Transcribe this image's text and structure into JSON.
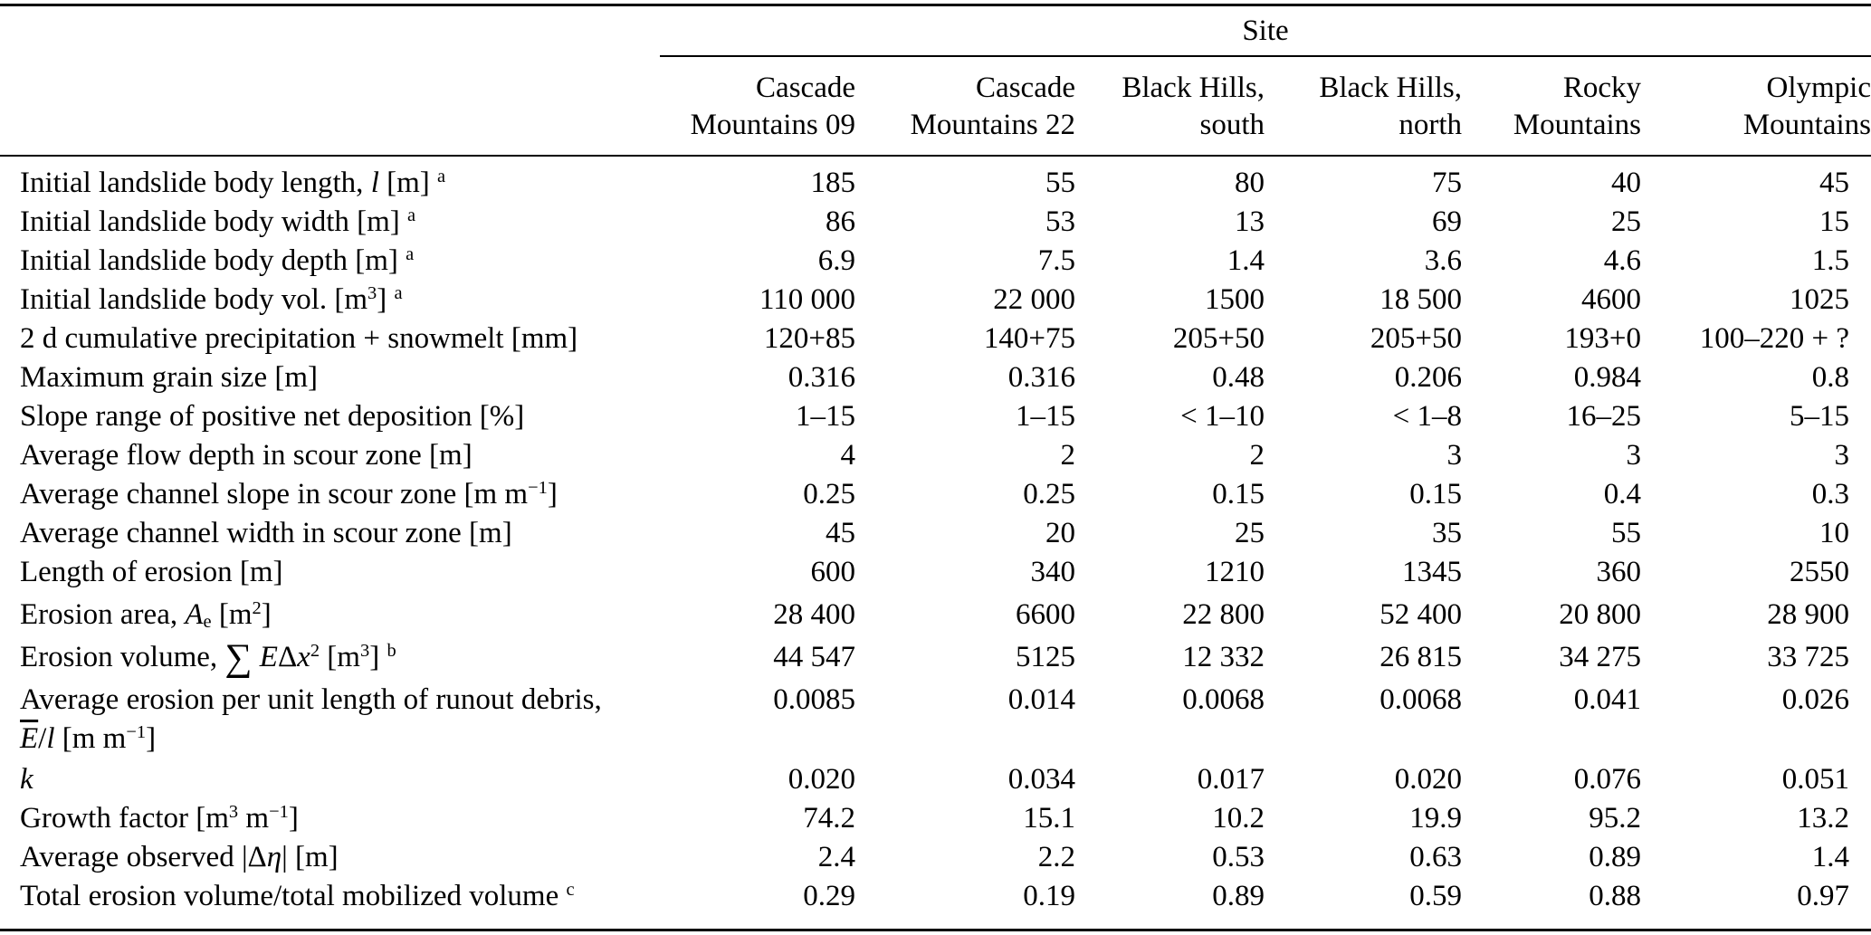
{
  "table": {
    "group_header": "Site",
    "columns": [
      [
        "Cascade",
        "Mountains 09"
      ],
      [
        "Cascade",
        "Mountains 22"
      ],
      [
        "Black Hills,",
        "south"
      ],
      [
        "Black Hills,",
        "north"
      ],
      [
        "Rocky",
        "Mountains"
      ],
      [
        "Olympic",
        "Mountains"
      ]
    ],
    "rows": [
      {
        "label": [
          {
            "s": "Initial landslide body length, "
          },
          {
            "s": "l",
            "i": 1
          },
          {
            "s": " [m] "
          },
          {
            "s": "a",
            "sup": 1
          }
        ],
        "values": [
          "185",
          "55",
          "80",
          "75",
          "40",
          "45"
        ]
      },
      {
        "label": [
          {
            "s": "Initial landslide body width [m] "
          },
          {
            "s": "a",
            "sup": 1
          }
        ],
        "values": [
          "86",
          "53",
          "13",
          "69",
          "25",
          "15"
        ]
      },
      {
        "label": [
          {
            "s": "Initial landslide body depth [m] "
          },
          {
            "s": "a",
            "sup": 1
          }
        ],
        "values": [
          "6.9",
          "7.5",
          "1.4",
          "3.6",
          "4.6",
          "1.5"
        ]
      },
      {
        "label": [
          {
            "s": "Initial landslide body vol. [m"
          },
          {
            "s": "3",
            "sup": 1
          },
          {
            "s": "] "
          },
          {
            "s": "a",
            "sup": 1
          }
        ],
        "values": [
          "110 000",
          "22 000",
          "1500",
          "18 500",
          "4600",
          "1025"
        ]
      },
      {
        "label": [
          {
            "s": "2 d cumulative precipitation + snowmelt [mm]"
          }
        ],
        "values": [
          "120+85",
          "140+75",
          "205+50",
          "205+50",
          "193+0",
          "100–220 + ?"
        ]
      },
      {
        "label": [
          {
            "s": "Maximum grain size [m]"
          }
        ],
        "values": [
          "0.316",
          "0.316",
          "0.48",
          "0.206",
          "0.984",
          "0.8"
        ]
      },
      {
        "label": [
          {
            "s": "Slope range of positive net deposition [%]"
          }
        ],
        "values": [
          "1–15",
          "1–15",
          "< 1–10",
          "< 1–8",
          "16–25",
          "5–15"
        ]
      },
      {
        "label": [
          {
            "s": "Average flow depth in scour zone [m]"
          }
        ],
        "values": [
          "4",
          "2",
          "2",
          "3",
          "3",
          "3"
        ]
      },
      {
        "label": [
          {
            "s": "Average channel slope in scour zone [m m"
          },
          {
            "s": "−1",
            "sup": 1
          },
          {
            "s": "]"
          }
        ],
        "values": [
          "0.25",
          "0.25",
          "0.15",
          "0.15",
          "0.4",
          "0.3"
        ]
      },
      {
        "label": [
          {
            "s": "Average channel width in scour zone [m]"
          }
        ],
        "values": [
          "45",
          "20",
          "25",
          "35",
          "55",
          "10"
        ]
      },
      {
        "label": [
          {
            "s": "Length of erosion [m]"
          }
        ],
        "values": [
          "600",
          "340",
          "1210",
          "1345",
          "360",
          "2550"
        ]
      },
      {
        "label": [
          {
            "s": "Erosion area, "
          },
          {
            "s": "A",
            "i": 1
          },
          {
            "s": "e",
            "sub": 1
          },
          {
            "s": " [m"
          },
          {
            "s": "2",
            "sup": 1
          },
          {
            "s": "]"
          }
        ],
        "values": [
          "28 400",
          "6600",
          "22 800",
          "52 400",
          "20 800",
          "28 900"
        ]
      },
      {
        "label": [
          {
            "s": "Erosion volume, "
          },
          {
            "s": "∑",
            "big": 1
          },
          {
            "s": " "
          },
          {
            "s": "E",
            "i": 1
          },
          {
            "s": "Δ"
          },
          {
            "s": "x",
            "i": 1
          },
          {
            "s": "2",
            "sup": 1
          },
          {
            "s": " [m"
          },
          {
            "s": "3",
            "sup": 1
          },
          {
            "s": "] "
          },
          {
            "s": "b",
            "sup": 1
          }
        ],
        "values": [
          "44 547",
          "5125",
          "12 332",
          "26 815",
          "34 275",
          "33 725"
        ]
      },
      {
        "label": [
          {
            "s": "Average erosion per unit length of runout debris,"
          },
          {
            "br": 1
          },
          {
            "s": "E",
            "i": 1,
            "ov": 1
          },
          {
            "s": "/"
          },
          {
            "s": "l",
            "i": 1
          },
          {
            "s": " [m m"
          },
          {
            "s": "−1",
            "sup": 1
          },
          {
            "s": "]"
          }
        ],
        "values": [
          "0.0085",
          "0.014",
          "0.0068",
          "0.0068",
          "0.041",
          "0.026"
        ]
      },
      {
        "label": [
          {
            "s": "k",
            "i": 1
          }
        ],
        "values": [
          "0.020",
          "0.034",
          "0.017",
          "0.020",
          "0.076",
          "0.051"
        ]
      },
      {
        "label": [
          {
            "s": "Growth factor [m"
          },
          {
            "s": "3",
            "sup": 1
          },
          {
            "s": " m"
          },
          {
            "s": "−1",
            "sup": 1
          },
          {
            "s": "]"
          }
        ],
        "values": [
          "74.2",
          "15.1",
          "10.2",
          "19.9",
          "95.2",
          "13.2"
        ]
      },
      {
        "label": [
          {
            "s": "Average observed |Δ"
          },
          {
            "s": "η",
            "i": 1
          },
          {
            "s": "| [m]"
          }
        ],
        "values": [
          "2.4",
          "2.2",
          "0.53",
          "0.63",
          "0.89",
          "1.4"
        ]
      },
      {
        "label": [
          {
            "s": "Total erosion volume/total mobilized volume "
          },
          {
            "s": "c",
            "sup": 1
          }
        ],
        "values": [
          "0.29",
          "0.19",
          "0.89",
          "0.59",
          "0.88",
          "0.97"
        ]
      }
    ]
  }
}
